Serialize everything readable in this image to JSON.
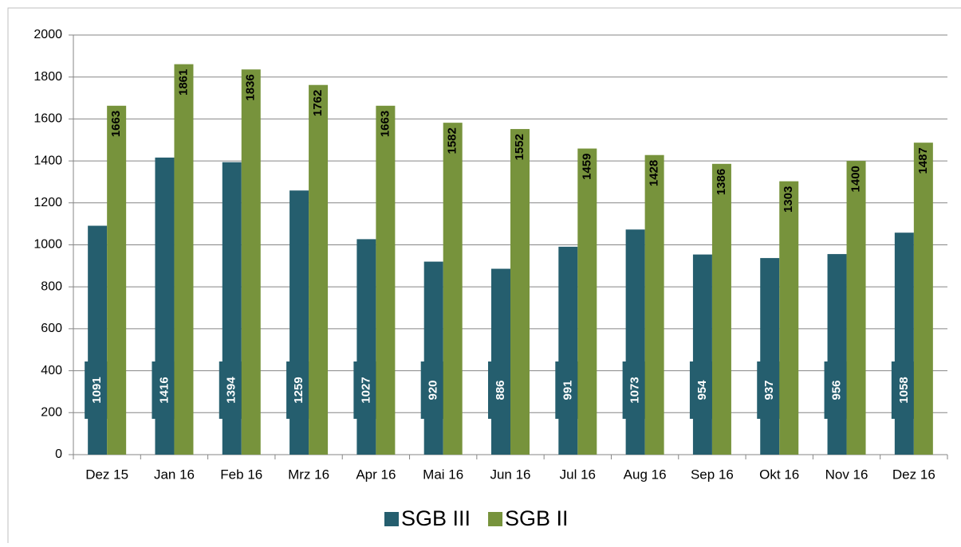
{
  "chart_data": {
    "type": "bar",
    "categories": [
      "Dez 15",
      "Jan 16",
      "Feb 16",
      "Mrz 16",
      "Apr 16",
      "Mai 16",
      "Jun 16",
      "Jul 16",
      "Aug 16",
      "Sep 16",
      "Okt 16",
      "Nov 16",
      "Dez 16"
    ],
    "series": [
      {
        "name": "SGB III",
        "color": "#255e6e",
        "values": [
          1091,
          1416,
          1394,
          1259,
          1027,
          920,
          886,
          991,
          1073,
          954,
          937,
          956,
          1058
        ]
      },
      {
        "name": "SGB II",
        "color": "#77933c",
        "values": [
          1663,
          1861,
          1836,
          1762,
          1663,
          1582,
          1552,
          1459,
          1428,
          1386,
          1303,
          1400,
          1487
        ]
      }
    ],
    "ylim": [
      0,
      2000
    ],
    "yticks": [
      0,
      200,
      400,
      600,
      800,
      1000,
      1200,
      1400,
      1600,
      1800,
      2000
    ],
    "grid": true,
    "legend": "bottom"
  }
}
